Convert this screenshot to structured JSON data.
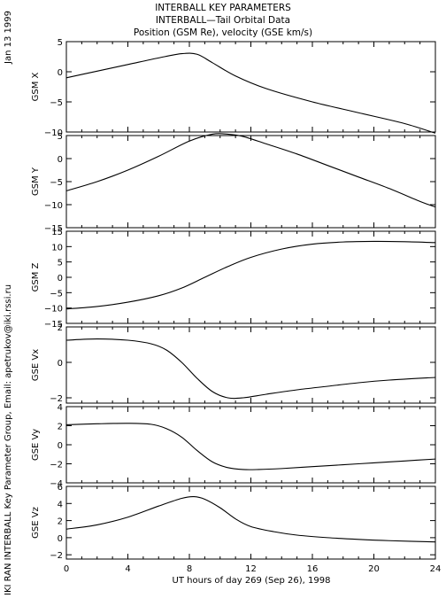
{
  "titles": {
    "line1": "INTERBALL KEY PARAMETERS",
    "line2": "INTERBALL—Tail Orbital Data",
    "line3": "Position (GSM Re), velocity (GSE km/s)"
  },
  "side": {
    "date": "Jan 13 1999",
    "credit": "IKI RAN INTERBALL Key Parameter Group, Email: apetrukov@iki.rssi.ru"
  },
  "x_axis": {
    "label": "UT hours of day 269 (Sep 26), 1998",
    "ticks": [
      "0",
      "4",
      "8",
      "12",
      "16",
      "20",
      "24"
    ]
  },
  "chart_data": [
    {
      "type": "line",
      "ylabel": "GSM X",
      "xlim": [
        0,
        24
      ],
      "ylim": [
        -10,
        5
      ],
      "yticks": [
        5,
        0,
        -5,
        -10
      ],
      "ytick_labels": [
        "5",
        "0",
        "−5",
        "−10"
      ],
      "x": [
        0,
        2,
        4,
        6,
        7.5,
        8.5,
        9.5,
        11,
        13,
        16,
        19,
        22,
        24
      ],
      "y": [
        -1.0,
        0.1,
        1.2,
        2.3,
        3.0,
        2.9,
        1.5,
        -0.7,
        -2.8,
        -5.0,
        -6.8,
        -8.6,
        -10.2
      ]
    },
    {
      "type": "line",
      "ylabel": "GSM Y",
      "xlim": [
        0,
        24
      ],
      "ylim": [
        -15,
        5
      ],
      "yticks": [
        5,
        0,
        -5,
        -10,
        -15
      ],
      "ytick_labels": [
        "5",
        "0",
        "−5",
        "−10",
        "−15"
      ],
      "x": [
        0,
        2,
        4,
        6,
        8,
        9.5,
        10.5,
        11.5,
        13,
        15,
        17,
        19,
        21,
        23,
        24
      ],
      "y": [
        -7.0,
        -5.0,
        -2.5,
        0.5,
        3.8,
        5.3,
        5.3,
        4.8,
        3.2,
        1.0,
        -1.5,
        -4.0,
        -6.5,
        -9.3,
        -10.5
      ]
    },
    {
      "type": "line",
      "ylabel": "GSM Z",
      "xlim": [
        0,
        24
      ],
      "ylim": [
        -15,
        15
      ],
      "yticks": [
        15,
        10,
        5,
        0,
        -5,
        -10,
        -15
      ],
      "ytick_labels": [
        "15",
        "10",
        "5",
        "0",
        "−5",
        "−10",
        "−15"
      ],
      "x": [
        0,
        2,
        4,
        6,
        7.5,
        9,
        10.5,
        12,
        14,
        16,
        18,
        20,
        22,
        24
      ],
      "y": [
        -10.3,
        -9.5,
        -8.1,
        -6.0,
        -3.5,
        0.0,
        3.5,
        6.5,
        9.2,
        10.8,
        11.5,
        11.7,
        11.6,
        11.3
      ]
    },
    {
      "type": "line",
      "ylabel": "GSE Vx",
      "xlim": [
        0,
        24
      ],
      "ylim": [
        -2.3,
        2
      ],
      "yticks": [
        2,
        0,
        -2
      ],
      "ytick_labels": [
        "2",
        "0",
        "−2"
      ],
      "x": [
        0,
        2,
        4,
        5.5,
        6.5,
        7.5,
        8.5,
        9.5,
        10.5,
        11.5,
        13,
        15,
        17,
        19,
        21,
        24
      ],
      "y": [
        1.25,
        1.32,
        1.25,
        1.05,
        0.7,
        0.0,
        -0.9,
        -1.65,
        -2.0,
        -2.0,
        -1.8,
        -1.55,
        -1.35,
        -1.15,
        -1.0,
        -0.85
      ]
    },
    {
      "type": "line",
      "ylabel": "GSE Vy",
      "xlim": [
        0,
        24
      ],
      "ylim": [
        -4,
        4
      ],
      "yticks": [
        4,
        2,
        0,
        -2,
        -4
      ],
      "ytick_labels": [
        "4",
        "2",
        "0",
        "−2",
        "−4"
      ],
      "x": [
        0,
        2,
        4,
        5.5,
        6.5,
        7.5,
        8.5,
        9.5,
        10.5,
        11.5,
        12.5,
        14,
        16,
        18,
        20,
        22,
        24
      ],
      "y": [
        2.1,
        2.2,
        2.25,
        2.15,
        1.7,
        0.8,
        -0.6,
        -1.8,
        -2.4,
        -2.6,
        -2.6,
        -2.5,
        -2.3,
        -2.1,
        -1.9,
        -1.7,
        -1.5
      ]
    },
    {
      "type": "line",
      "ylabel": "GSE Vz",
      "xlim": [
        0,
        24
      ],
      "ylim": [
        -2.5,
        6
      ],
      "yticks": [
        6,
        4,
        2,
        0,
        -2
      ],
      "ytick_labels": [
        "6",
        "4",
        "2",
        "0",
        "−2"
      ],
      "x": [
        0,
        2,
        4,
        6,
        7.5,
        8.3,
        9,
        10,
        11,
        12,
        13.5,
        15,
        17,
        19,
        21,
        24
      ],
      "y": [
        1.0,
        1.5,
        2.4,
        3.7,
        4.6,
        4.8,
        4.5,
        3.5,
        2.2,
        1.3,
        0.7,
        0.3,
        0.0,
        -0.2,
        -0.35,
        -0.5
      ]
    }
  ]
}
